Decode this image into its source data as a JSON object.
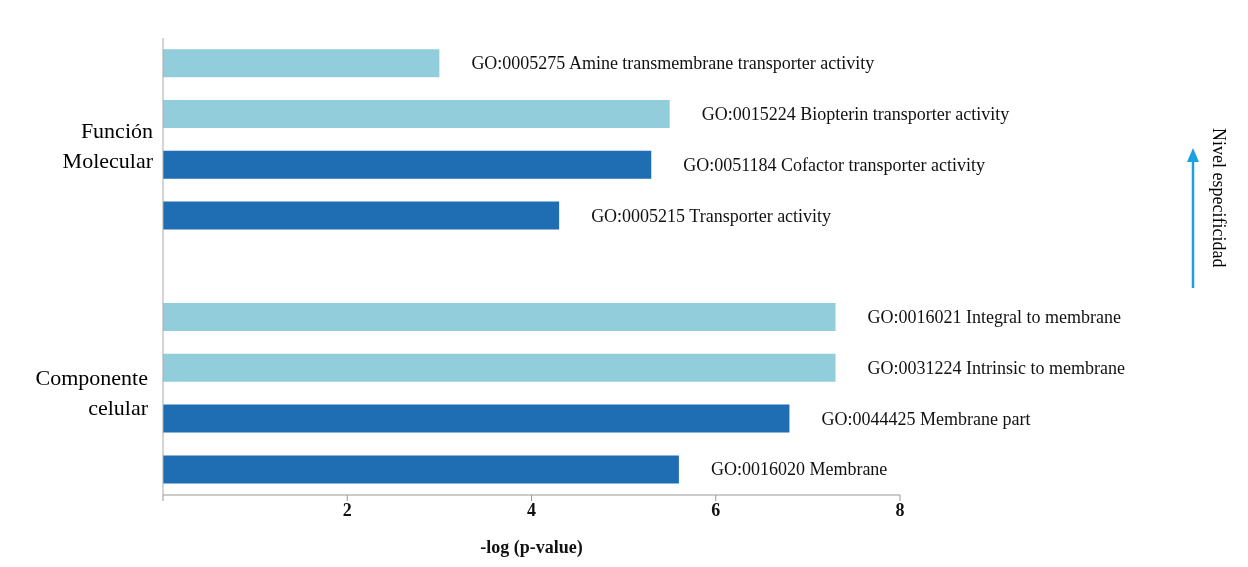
{
  "chart_data": {
    "type": "bar",
    "orientation": "horizontal",
    "xlabel": "-log (p-value)",
    "categories": [
      "GO:0005275 Amine transmembrane transporter activity",
      "GO:0015224 Biopterin transporter activity",
      "GO:0051184 Cofactor transporter activity",
      "GO:0005215 Transporter activity",
      null,
      "GO:0016021 Integral to membrane",
      "GO:0031224 Intrinsic to membrane",
      "GO:0044425 Membrane part",
      "GO:0016020 Membrane"
    ],
    "values": [
      3.0,
      5.5,
      5.3,
      4.3,
      null,
      7.3,
      7.3,
      6.8,
      5.6
    ],
    "colors": [
      "#92cddc",
      "#92cddc",
      "#1f6db3",
      "#1f6db3",
      "#92cddc",
      "#92cddc",
      "#92cddc",
      "#1f6db3",
      "#1f6db3"
    ],
    "xlim": [
      0,
      8
    ],
    "xticks": [
      {
        "value": 0,
        "label": null
      },
      2,
      4,
      6,
      8
    ],
    "annotations": [
      "Función Molecular",
      "Componente celular",
      "Nivel especificidad"
    ]
  }
}
